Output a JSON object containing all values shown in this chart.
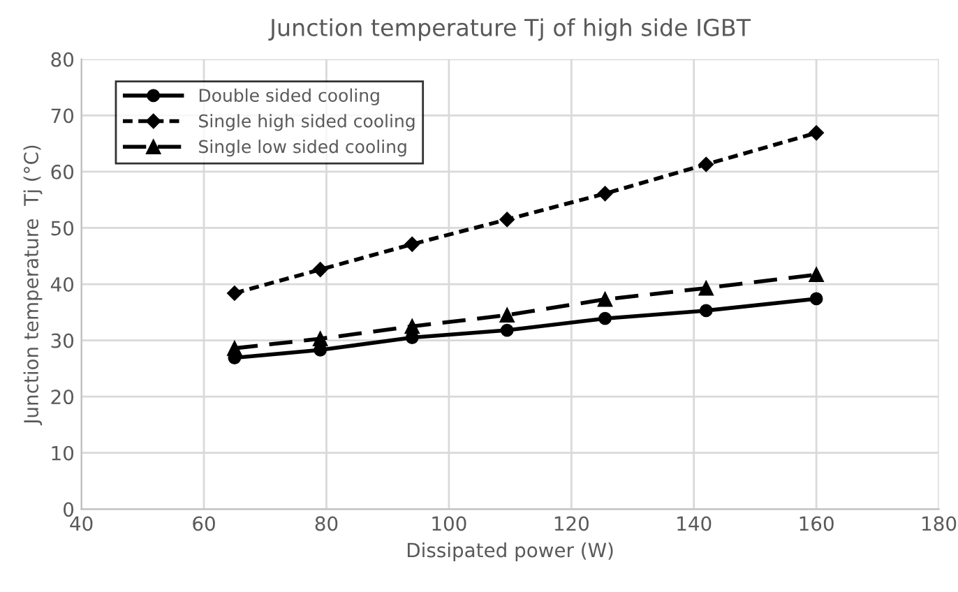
{
  "chart_data": {
    "type": "line",
    "title": "Junction temperature Tj of high side IGBT",
    "xlabel": "Dissipated power (W)",
    "ylabel": "Junction temperature  Tj (°C)",
    "x": [
      65,
      79,
      94,
      109.5,
      125.5,
      142,
      160
    ],
    "series": [
      {
        "name": "Double sided cooling",
        "color": "#000000",
        "marker": "circle",
        "line_style": "solid",
        "values": [
          26.9,
          28.3,
          30.5,
          31.8,
          33.9,
          35.3,
          37.4
        ]
      },
      {
        "name": "Single high sided cooling",
        "color": "#000000",
        "marker": "diamond",
        "line_style": "dotted",
        "values": [
          38.4,
          42.6,
          47.1,
          51.5,
          56.1,
          61.3,
          66.9
        ]
      },
      {
        "name": "Single low sided cooling",
        "color": "#000000",
        "marker": "triangle",
        "line_style": "dashed",
        "values": [
          28.6,
          30.3,
          32.5,
          34.5,
          37.3,
          39.3,
          41.7
        ]
      }
    ],
    "xlim": [
      40,
      180
    ],
    "xticks": [
      40,
      60,
      80,
      100,
      120,
      140,
      160,
      180
    ],
    "ylim": [
      0,
      80
    ],
    "yticks": [
      0,
      10,
      20,
      30,
      40,
      50,
      60,
      70,
      80
    ],
    "grid": true,
    "legend": "top left"
  }
}
